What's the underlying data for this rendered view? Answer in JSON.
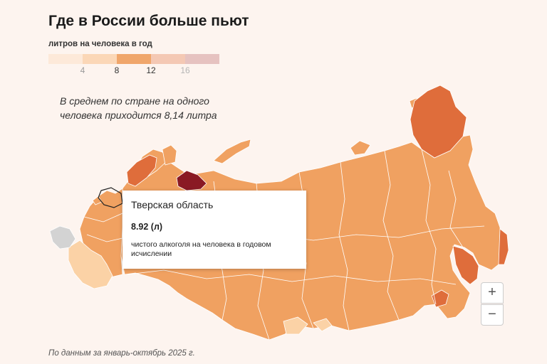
{
  "header": {
    "title": "Где в России больше пьют"
  },
  "legend": {
    "title": "литров на человека в год",
    "bins": [
      {
        "color": "#fde9d9"
      },
      {
        "color": "#fbd7b7"
      },
      {
        "color": "#f0a66b"
      },
      {
        "color": "#f4c8b4"
      },
      {
        "color": "#e6c2c0"
      }
    ],
    "ticks": [
      {
        "label": "4",
        "color": "#9a9a9a"
      },
      {
        "label": "8",
        "color": "#333333"
      },
      {
        "label": "12",
        "color": "#333333"
      },
      {
        "label": "16",
        "color": "#b5b5b5"
      }
    ]
  },
  "note": "В среднем по стране на одного человека приходится 8,14 литра",
  "tooltip": {
    "region": "Тверская область",
    "value": "8.92 (л)",
    "description": "чистого алкоголя на человека в годовом исчислении"
  },
  "zoom": {
    "in_label": "+",
    "out_label": "−"
  },
  "source": "По данным за январь-октябрь 2025 г.",
  "colors": {
    "background": "#fdf4ef",
    "main_fill": "#f0a161",
    "dark_fill": "#df6d3b",
    "maroon_fill": "#8a1a24",
    "light_fill": "#fbd2a6",
    "no_data": "#d3d3d3",
    "border": "#ffffff"
  }
}
